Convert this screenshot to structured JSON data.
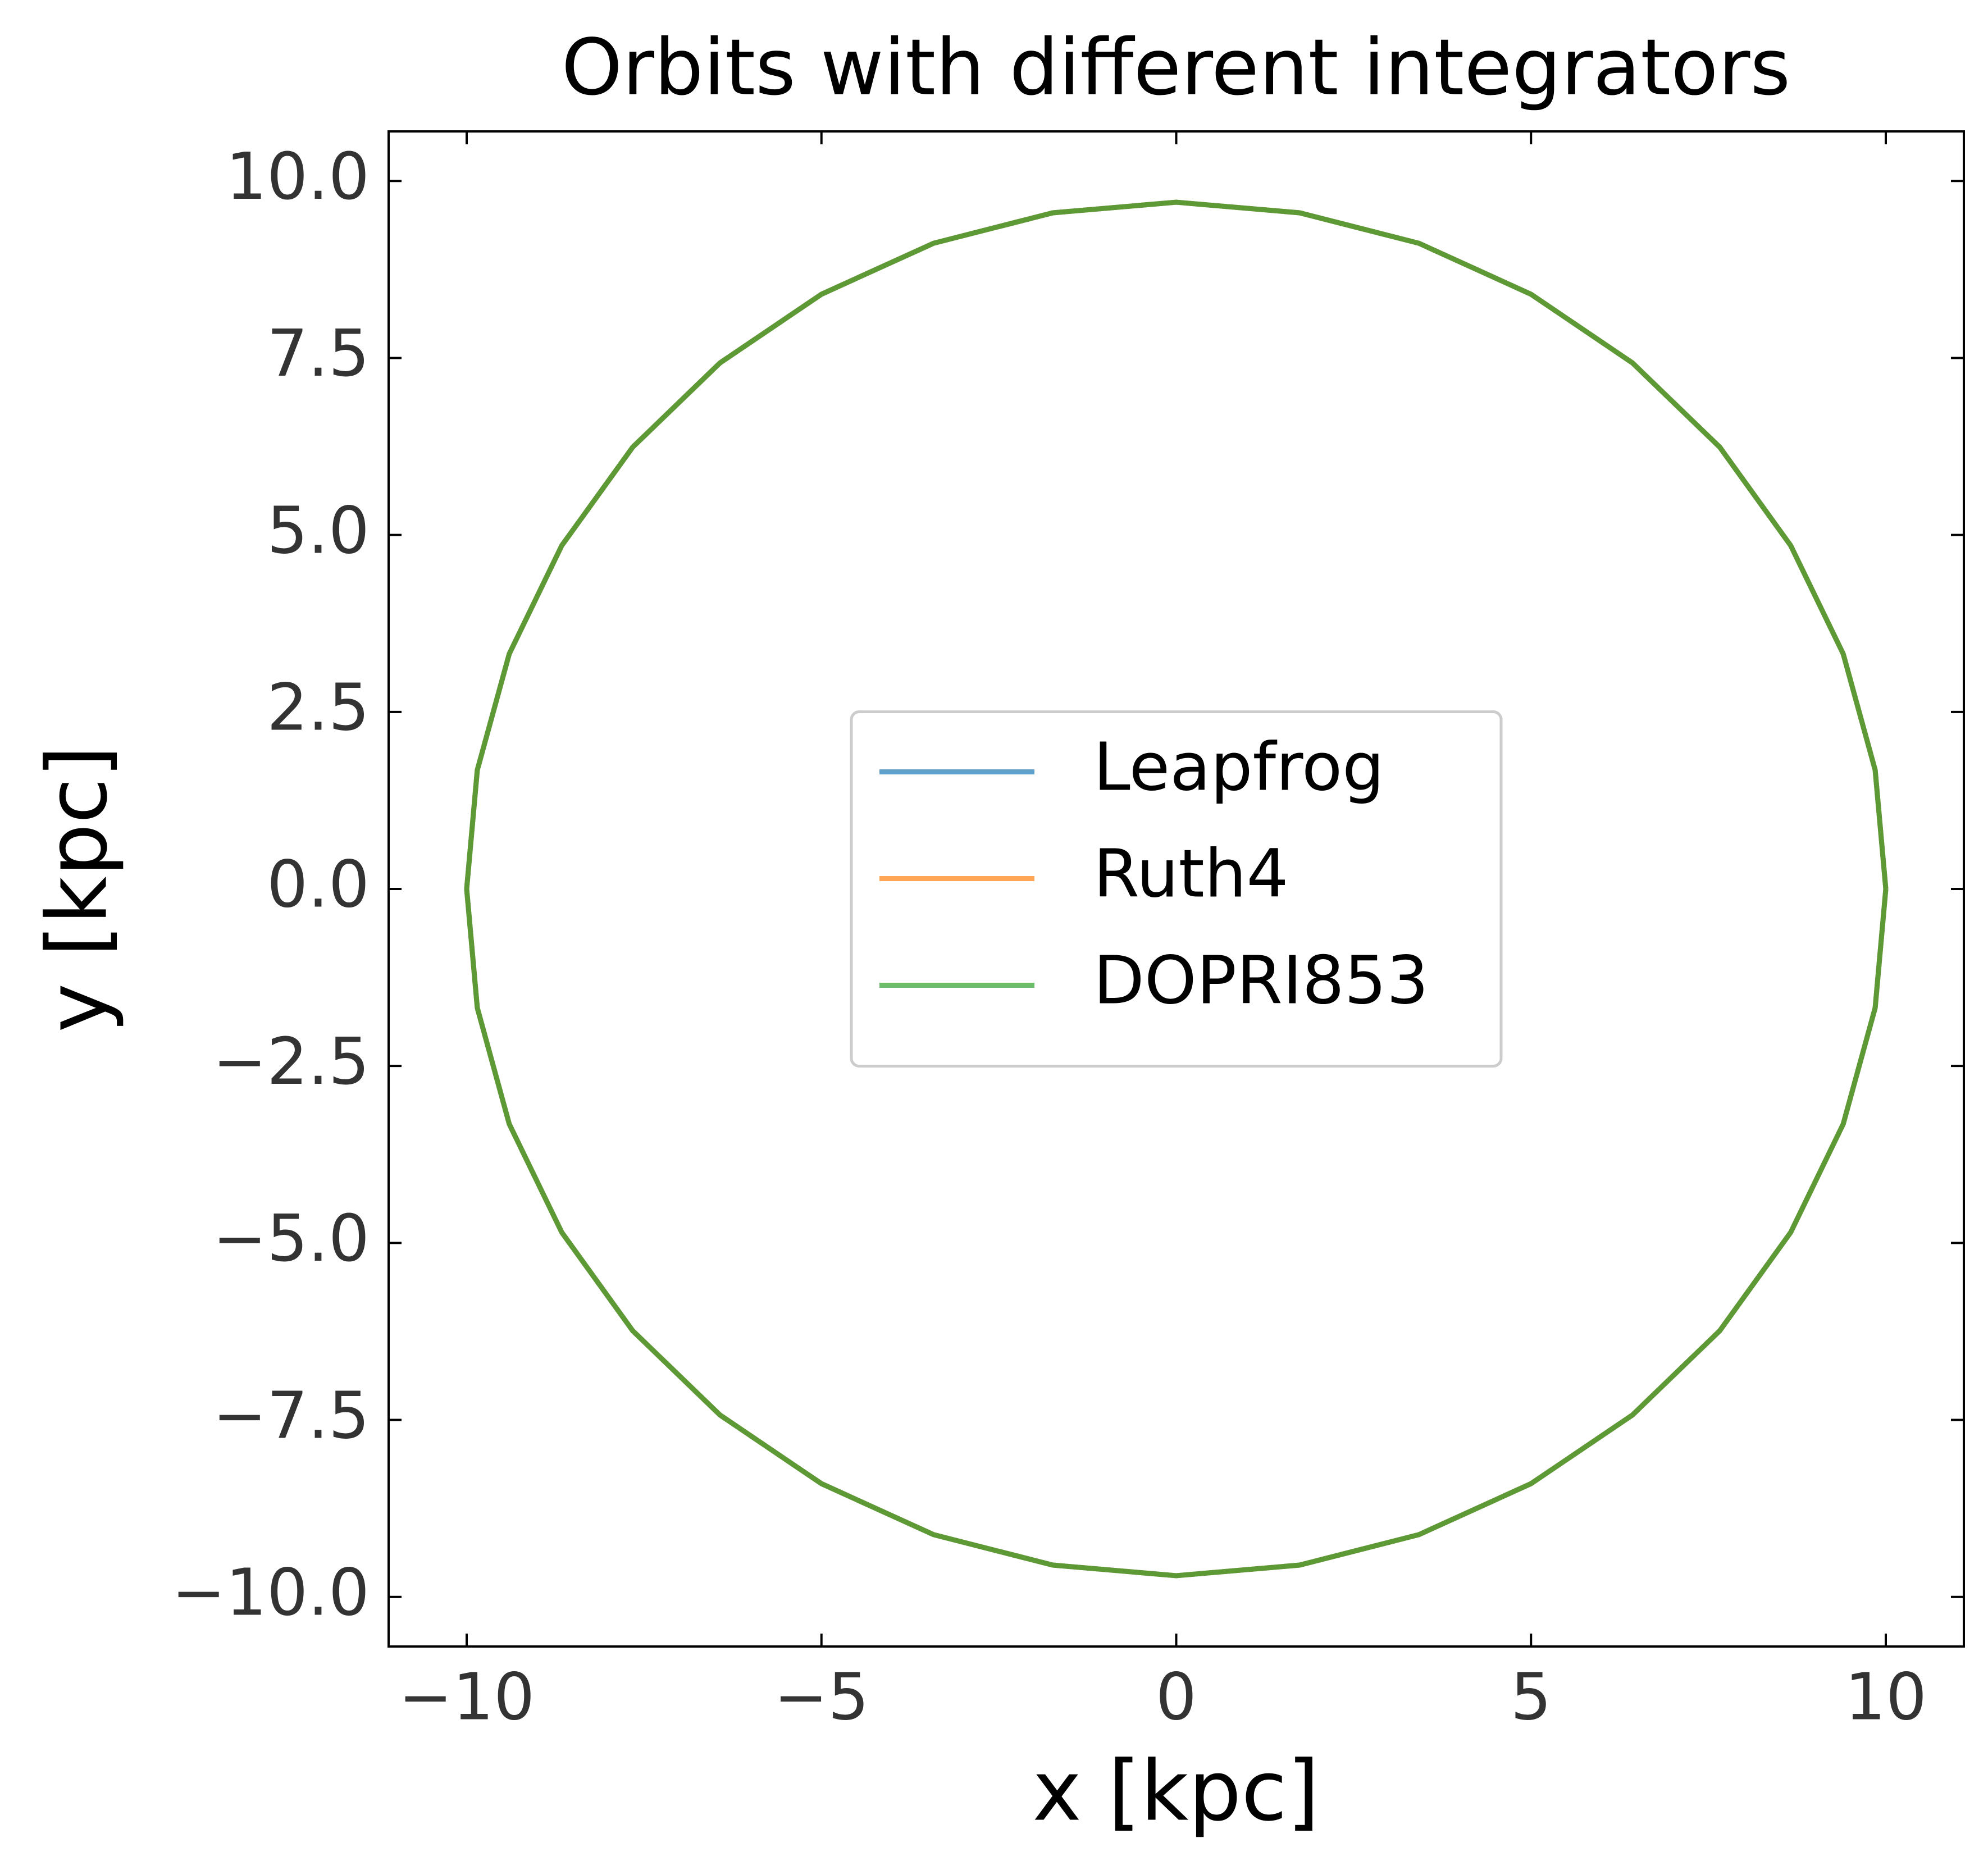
{
  "chart_data": {
    "type": "line",
    "title": "Orbits with different integrators",
    "x_label": "x [kpc]",
    "y_label": "y [kpc]",
    "xlim": [
      -11.1,
      11.1
    ],
    "ylim": [
      -10.7,
      10.7
    ],
    "xticks": [
      {
        "value": -10,
        "label": "−10"
      },
      {
        "value": -5,
        "label": "−5"
      },
      0,
      5,
      10
    ],
    "yticks": [
      {
        "value": -10,
        "label": "−10.0"
      },
      {
        "value": -7.5,
        "label": "−7.5"
      },
      {
        "value": -5,
        "label": "−5.0"
      },
      {
        "value": -2.5,
        "label": "−2.5"
      },
      {
        "value": 0,
        "label": "0.0"
      },
      2.5,
      {
        "value": 5,
        "label": "5.0"
      },
      7.5,
      {
        "value": 10,
        "label": "10.0"
      }
    ],
    "legend": "center",
    "series": [
      {
        "name": "Leapfrog",
        "color": "#1f77b4",
        "x": [
          10,
          9.85,
          9.4,
          8.66,
          7.66,
          6.43,
          5.0,
          3.42,
          1.74,
          0,
          -1.74,
          -3.42,
          -5.0,
          -6.43,
          -7.66,
          -8.66,
          -9.4,
          -9.85,
          -10,
          -9.85,
          -9.4,
          -8.66,
          -7.66,
          -6.43,
          -5.0,
          -3.42,
          -1.74,
          0,
          1.74,
          3.42,
          5.0,
          6.43,
          7.66,
          8.66,
          9.4,
          9.85,
          10
        ],
        "y": [
          0,
          1.68,
          3.32,
          4.85,
          6.24,
          7.43,
          8.4,
          9.12,
          9.55,
          9.7,
          9.55,
          9.12,
          8.4,
          7.43,
          6.24,
          4.85,
          3.32,
          1.68,
          0,
          -1.68,
          -3.32,
          -4.85,
          -6.24,
          -7.43,
          -8.4,
          -9.12,
          -9.55,
          -9.7,
          -9.55,
          -9.12,
          -8.4,
          -7.43,
          -6.24,
          -4.85,
          -3.32,
          -1.68,
          0
        ]
      },
      {
        "name": "Ruth4",
        "color": "#ff7f0e",
        "x": [
          10,
          9.85,
          9.4,
          8.66,
          7.66,
          6.43,
          5.0,
          3.42,
          1.74,
          0,
          -1.74,
          -3.42,
          -5.0,
          -6.43,
          -7.66,
          -8.66,
          -9.4,
          -9.85,
          -10,
          -9.85,
          -9.4,
          -8.66,
          -7.66,
          -6.43,
          -5.0,
          -3.42,
          -1.74,
          0,
          1.74,
          3.42,
          5.0,
          6.43,
          7.66,
          8.66,
          9.4,
          9.85,
          10
        ],
        "y": [
          0,
          1.68,
          3.32,
          4.85,
          6.24,
          7.43,
          8.4,
          9.12,
          9.55,
          9.7,
          9.55,
          9.12,
          8.4,
          7.43,
          6.24,
          4.85,
          3.32,
          1.68,
          0,
          -1.68,
          -3.32,
          -4.85,
          -6.24,
          -7.43,
          -8.4,
          -9.12,
          -9.55,
          -9.7,
          -9.55,
          -9.12,
          -8.4,
          -7.43,
          -6.24,
          -4.85,
          -3.32,
          -1.68,
          0
        ]
      },
      {
        "name": "DOPRI853",
        "color": "#2ca02c",
        "x": [
          10,
          9.85,
          9.4,
          8.66,
          7.66,
          6.43,
          5.0,
          3.42,
          1.74,
          0,
          -1.74,
          -3.42,
          -5.0,
          -6.43,
          -7.66,
          -8.66,
          -9.4,
          -9.85,
          -10,
          -9.85,
          -9.4,
          -8.66,
          -7.66,
          -6.43,
          -5.0,
          -3.42,
          -1.74,
          0,
          1.74,
          3.42,
          5.0,
          6.43,
          7.66,
          8.66,
          9.4,
          9.85,
          10
        ],
        "y": [
          0,
          1.68,
          3.32,
          4.85,
          6.24,
          7.43,
          8.4,
          9.12,
          9.55,
          9.7,
          9.55,
          9.12,
          8.4,
          7.43,
          6.24,
          4.85,
          3.32,
          1.68,
          0,
          -1.68,
          -3.32,
          -4.85,
          -6.24,
          -7.43,
          -8.4,
          -9.12,
          -9.55,
          -9.7,
          -9.55,
          -9.12,
          -8.4,
          -7.43,
          -6.24,
          -4.85,
          -3.32,
          -1.68,
          0
        ]
      }
    ]
  }
}
